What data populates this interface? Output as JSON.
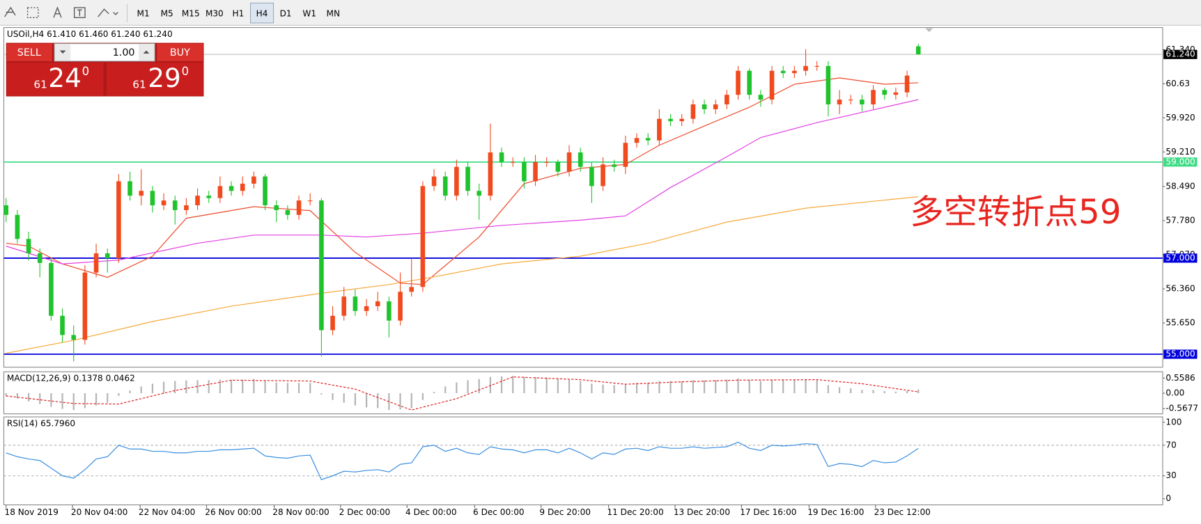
{
  "toolbar": {
    "timeframes": [
      "M1",
      "M5",
      "M15",
      "M30",
      "H1",
      "H4",
      "D1",
      "W1",
      "MN"
    ],
    "active": 5
  },
  "trade_panel": {
    "sell": "SELL",
    "buy": "BUY",
    "lot": "1.00",
    "bid": {
      "big": "61",
      "figure": "24",
      "point": "0"
    },
    "ask": {
      "big": "61",
      "figure": "29",
      "point": "0"
    }
  },
  "chart_data": [
    {
      "type": "candlestick",
      "label": "USOil,H4  61.410 61.460 61.240 61.240",
      "up_color": "#f04a1e",
      "down_color": "#1fc32c",
      "xlim": [
        -0.2,
        102.7
      ],
      "ylim": [
        54.73,
        61.8
      ],
      "yticks": [
        {
          "value": 61.34,
          "label": "61.340"
        },
        60.63,
        {
          "value": 59.92,
          "label": "59.920"
        },
        {
          "value": 59.21,
          "label": "59.210"
        },
        {
          "value": 58.49,
          "label": "58.490"
        },
        {
          "value": 57.78,
          "label": "57.780"
        },
        {
          "value": 57.07,
          "label": "57.070"
        },
        {
          "value": 56.36,
          "label": "56.360"
        },
        {
          "value": 55.65,
          "label": "55.650"
        }
      ],
      "xticks": [
        {
          "value": 0,
          "label": "18 Nov 2019"
        },
        {
          "value": 5.9,
          "label": "20 Nov 04:00"
        },
        {
          "value": 11.9,
          "label": "22 Nov 04:00"
        },
        {
          "value": 17.8,
          "label": "26 Nov 00:00"
        },
        {
          "value": 23.8,
          "label": "28 Nov 00:00"
        },
        {
          "value": 29.7,
          "label": "2 Dec 00:00"
        },
        {
          "value": 35.6,
          "label": "4 Dec 00:00"
        },
        {
          "value": 41.6,
          "label": "6 Dec 00:00"
        },
        {
          "value": 47.5,
          "label": "9 Dec 20:00"
        },
        {
          "value": 53.5,
          "label": "11 Dec 20:00"
        },
        {
          "value": 59.4,
          "label": "13 Dec 20:00"
        },
        {
          "value": 65.3,
          "label": "17 Dec 16:00"
        },
        {
          "value": 71.3,
          "label": "19 Dec 16:00"
        },
        {
          "value": 77.2,
          "label": "23 Dec 12:00"
        }
      ],
      "open": [
        58.1,
        57.9,
        57.4,
        57.1,
        56.9,
        55.8,
        55.4,
        55.3,
        56.7,
        57.1,
        57.0,
        58.6,
        58.3,
        58.4,
        58.1,
        58.2,
        58.0,
        58.1,
        58.3,
        58.25,
        58.5,
        58.4,
        58.55,
        58.7,
        58.1,
        58.0,
        57.9,
        58.2,
        58.2,
        55.5,
        55.8,
        56.2,
        55.9,
        56.0,
        56.1,
        55.7,
        56.3,
        56.4,
        58.5,
        58.7,
        58.3,
        58.9,
        58.4,
        58.3,
        59.2,
        59.0,
        59.0,
        58.6,
        59.0,
        59.0,
        58.8,
        59.2,
        58.9,
        58.5,
        58.95,
        58.9,
        59.4,
        59.5,
        59.45,
        59.9,
        59.85,
        59.9,
        60.2,
        60.1,
        60.2,
        60.4,
        60.9,
        60.4,
        60.3,
        60.9,
        60.85,
        60.9,
        61.0,
        61.0,
        60.2,
        60.3,
        60.3,
        60.2,
        60.5,
        60.4,
        60.45,
        61.41
      ],
      "high": [
        58.25,
        58.0,
        57.55,
        57.2,
        57.0,
        55.95,
        55.6,
        56.85,
        57.3,
        57.2,
        58.75,
        58.8,
        58.85,
        58.5,
        58.35,
        58.3,
        58.25,
        58.45,
        58.4,
        58.7,
        58.6,
        58.7,
        58.8,
        58.75,
        58.2,
        58.1,
        58.3,
        58.35,
        58.25,
        56.0,
        56.4,
        56.35,
        56.15,
        56.3,
        56.2,
        56.7,
        57.0,
        58.6,
        58.85,
        58.8,
        59.05,
        59.0,
        58.55,
        59.8,
        59.3,
        59.1,
        59.1,
        59.15,
        59.1,
        59.05,
        59.35,
        59.3,
        59.0,
        59.1,
        59.05,
        59.55,
        59.6,
        59.6,
        60.1,
        60.0,
        60.0,
        60.3,
        60.3,
        60.3,
        60.5,
        61.0,
        60.95,
        60.5,
        61.0,
        61.0,
        61.0,
        61.35,
        61.1,
        61.1,
        60.5,
        60.4,
        60.4,
        60.6,
        60.55,
        60.55,
        60.9,
        61.46
      ],
      "low": [
        57.75,
        57.3,
        56.95,
        56.6,
        55.7,
        55.25,
        54.85,
        55.2,
        56.6,
        56.7,
        56.9,
        58.2,
        58.1,
        57.95,
        58.0,
        57.7,
        57.9,
        58.0,
        58.15,
        58.15,
        58.3,
        58.3,
        58.45,
        58.0,
        57.75,
        57.8,
        57.8,
        58.1,
        54.95,
        55.4,
        55.7,
        55.8,
        55.8,
        55.9,
        55.35,
        55.6,
        56.2,
        56.3,
        58.4,
        58.2,
        58.2,
        58.3,
        57.8,
        58.2,
        58.9,
        58.9,
        58.45,
        58.5,
        58.9,
        58.7,
        58.7,
        58.8,
        58.15,
        58.4,
        58.8,
        58.75,
        59.3,
        59.35,
        59.35,
        59.75,
        59.75,
        59.8,
        60.0,
        60.0,
        60.1,
        60.3,
        60.3,
        60.15,
        60.2,
        60.75,
        60.75,
        60.8,
        60.9,
        59.95,
        60.0,
        60.2,
        60.05,
        60.1,
        60.3,
        60.3,
        60.35,
        61.24
      ],
      "close": [
        57.9,
        57.4,
        57.1,
        56.9,
        55.8,
        55.4,
        55.3,
        56.7,
        57.1,
        57.0,
        58.6,
        58.3,
        58.4,
        58.1,
        58.2,
        58.0,
        58.1,
        58.3,
        58.25,
        58.5,
        58.4,
        58.55,
        58.7,
        58.1,
        58.0,
        57.9,
        58.2,
        58.2,
        55.5,
        55.8,
        56.2,
        55.9,
        56.0,
        56.1,
        55.7,
        56.3,
        56.4,
        58.5,
        58.7,
        58.3,
        58.9,
        58.4,
        58.3,
        59.2,
        59.0,
        59.0,
        58.6,
        59.0,
        59.0,
        58.8,
        59.2,
        58.9,
        58.5,
        58.95,
        58.9,
        59.4,
        59.5,
        59.45,
        59.9,
        59.85,
        59.9,
        60.2,
        60.1,
        60.2,
        60.4,
        60.9,
        60.4,
        60.3,
        60.9,
        60.85,
        60.9,
        61.0,
        61.0,
        60.2,
        60.3,
        60.3,
        60.2,
        60.5,
        60.4,
        60.45,
        60.8,
        61.24
      ],
      "lines": [
        {
          "color": "#ee4a2a",
          "x": [
            0,
            2,
            5,
            9,
            13,
            16,
            22,
            27,
            31,
            35,
            37,
            42,
            46,
            51,
            55,
            58,
            62,
            66,
            70,
            74,
            78,
            81
          ],
          "values": [
            57.31,
            57.25,
            56.88,
            56.6,
            57.04,
            57.83,
            58.07,
            57.99,
            57.12,
            56.48,
            56.45,
            57.44,
            58.55,
            58.87,
            58.95,
            59.35,
            59.75,
            60.14,
            60.62,
            60.75,
            60.62,
            60.65
          ]
        },
        {
          "color": "#e23ee2",
          "x": [
            0,
            5,
            10,
            17,
            22,
            28,
            32,
            37,
            44,
            51,
            55,
            59,
            64,
            67,
            72,
            81
          ],
          "values": [
            57.25,
            56.88,
            56.96,
            57.31,
            57.48,
            57.48,
            57.44,
            57.52,
            57.68,
            57.79,
            57.88,
            58.47,
            59.11,
            59.51,
            59.82,
            60.3
          ]
        },
        {
          "color": "#f6a93b",
          "x": [
            0,
            6,
            13,
            20,
            28,
            34,
            38,
            44,
            51,
            57,
            64,
            71,
            81
          ],
          "values": [
            55.02,
            55.29,
            55.68,
            56.0,
            56.27,
            56.45,
            56.61,
            56.88,
            57.04,
            57.31,
            57.75,
            58.04,
            58.28
          ]
        }
      ],
      "levels": [
        {
          "value": 59,
          "label": "59.000",
          "color": "#3ddc84"
        },
        {
          "value": 57,
          "label": "57.000",
          "color": "#0000dd"
        },
        {
          "value": 55,
          "label": "55.000",
          "color": "#0000dd"
        }
      ],
      "current_price": {
        "value": 61.24,
        "label": "61.240"
      },
      "annotation": "多空转折点59",
      "annotation_color": "#e8251f"
    },
    {
      "type": "bar",
      "label": "MACD(12,26,9) 0.1378 0.0462",
      "color": "#b4b4b4",
      "xlim": [
        -0.2,
        102.7
      ],
      "ylim": [
        -0.76,
        0.79
      ],
      "yticks": [
        0.5586,
        {
          "value": 0,
          "label": "0.00"
        },
        -0.5677
      ],
      "values": [
        -0.1,
        -0.2,
        -0.3,
        -0.4,
        -0.5,
        -0.58,
        -0.62,
        -0.55,
        -0.45,
        -0.35,
        -0.1,
        0.1,
        0.25,
        0.35,
        0.42,
        0.45,
        0.47,
        0.48,
        0.48,
        0.5,
        0.5,
        0.5,
        0.52,
        0.45,
        0.4,
        0.38,
        0.38,
        0.38,
        -0.05,
        -0.25,
        -0.35,
        -0.45,
        -0.52,
        -0.55,
        -0.62,
        -0.6,
        -0.55,
        -0.25,
        0.05,
        0.25,
        0.4,
        0.48,
        0.52,
        0.6,
        0.62,
        0.64,
        0.6,
        0.6,
        0.58,
        0.52,
        0.5,
        0.45,
        0.35,
        0.32,
        0.3,
        0.35,
        0.38,
        0.38,
        0.45,
        0.45,
        0.44,
        0.48,
        0.48,
        0.48,
        0.5,
        0.55,
        0.5,
        0.45,
        0.5,
        0.5,
        0.5,
        0.52,
        0.5,
        0.3,
        0.22,
        0.18,
        0.12,
        0.12,
        0.08,
        0.06,
        0.08,
        0.14
      ],
      "lines": [
        {
          "color": "#e02020",
          "dashed": true,
          "x": [
            0,
            6,
            10,
            15,
            20,
            27,
            31,
            36,
            40,
            45,
            51,
            55,
            60,
            65,
            72,
            76,
            81
          ],
          "values": [
            -0.1,
            -0.38,
            -0.4,
            0.1,
            0.48,
            0.45,
            0.15,
            -0.62,
            -0.2,
            0.6,
            0.5,
            0.33,
            0.42,
            0.48,
            0.5,
            0.35,
            0.05
          ]
        }
      ]
    },
    {
      "type": "line",
      "label": "RSI(14) 65.7960",
      "color": "#3a8fe0",
      "xlim": [
        -0.2,
        102.7
      ],
      "ylim": [
        -8,
        107
      ],
      "yticks": [
        100,
        70,
        30,
        0
      ],
      "dashed_levels": [
        70,
        30
      ],
      "values": [
        60,
        55,
        52,
        50,
        40,
        30,
        27,
        38,
        52,
        55,
        70,
        65,
        65,
        62,
        62,
        60,
        60,
        62,
        62,
        64,
        64,
        65,
        66,
        56,
        54,
        53,
        56,
        57,
        25,
        30,
        36,
        35,
        37,
        38,
        35,
        45,
        47,
        68,
        70,
        62,
        66,
        60,
        58,
        68,
        65,
        64,
        60,
        64,
        64,
        60,
        66,
        60,
        52,
        60,
        58,
        65,
        66,
        63,
        68,
        66,
        66,
        68,
        66,
        67,
        68,
        74,
        66,
        63,
        70,
        69,
        70,
        72,
        71,
        42,
        46,
        45,
        42,
        50,
        47,
        48,
        56,
        65.8
      ]
    }
  ]
}
